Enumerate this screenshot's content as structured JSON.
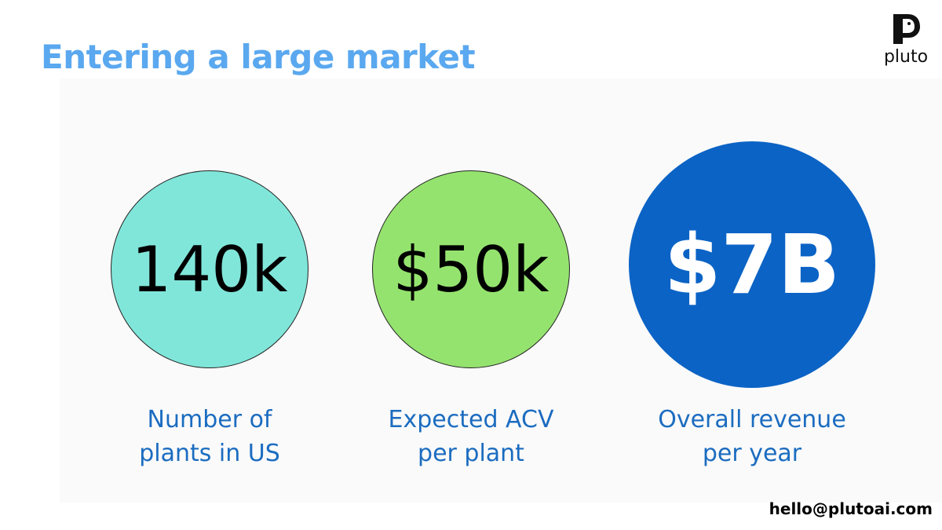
{
  "header": {
    "title": "Entering a large market",
    "logo": "pluto"
  },
  "stats": [
    {
      "value": "140k",
      "label": [
        "Number of",
        "plants in US"
      ]
    },
    {
      "value": "$50k",
      "label": [
        "Expected ACV",
        "per plant"
      ]
    },
    {
      "value": "$7B",
      "label": [
        "Overall revenue",
        "per year"
      ]
    }
  ],
  "footer": {
    "email": "hello@plutoai.com"
  }
}
